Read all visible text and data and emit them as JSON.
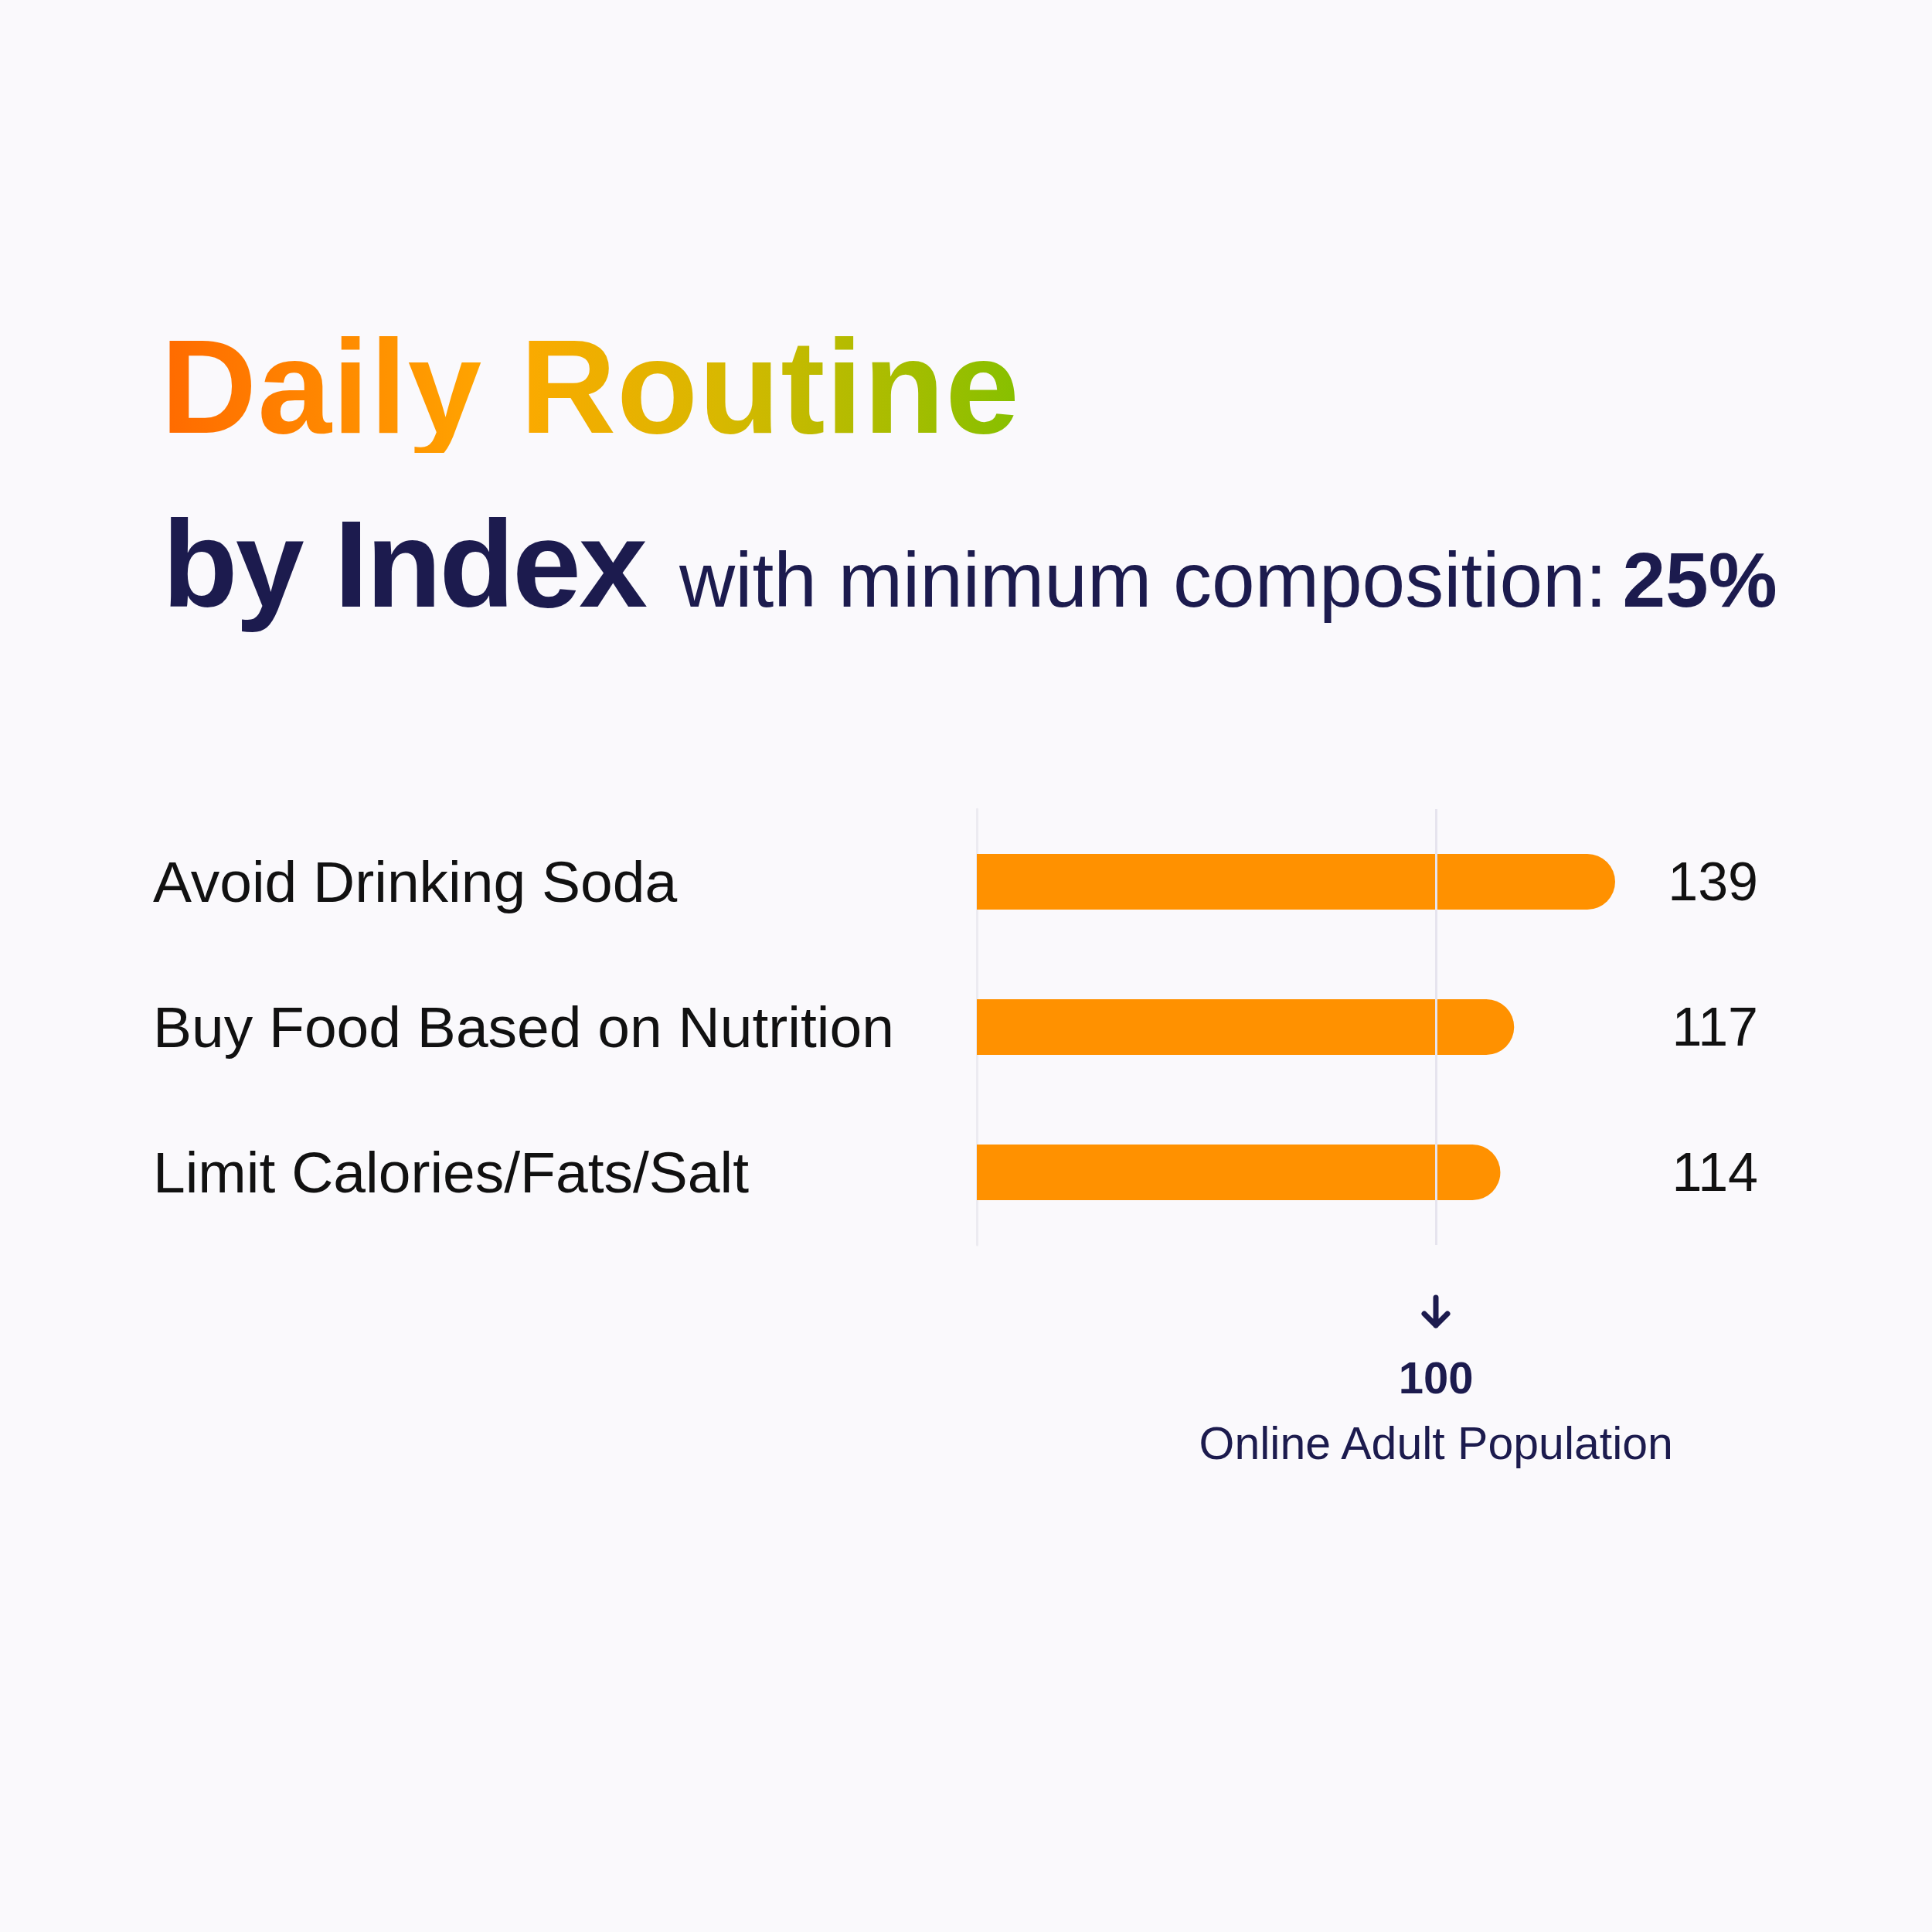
{
  "chart_data": {
    "type": "bar",
    "orientation": "horizontal",
    "title": "Daily Routine",
    "subtitle": "by Index with minimum composition: 25%",
    "categories": [
      "Avoid Drinking Soda",
      "Buy Food Based on Nutrition",
      "Limit Calories/Fats/Salt"
    ],
    "values": [
      139,
      117,
      114
    ],
    "color": "#ff9100",
    "data_labels": true,
    "tick_labels": "y",
    "ref_lines": [
      {
        "axis": "x",
        "value": 100,
        "label": "100"
      }
    ],
    "annotations": [
      "Online Adult Population"
    ]
  }
}
